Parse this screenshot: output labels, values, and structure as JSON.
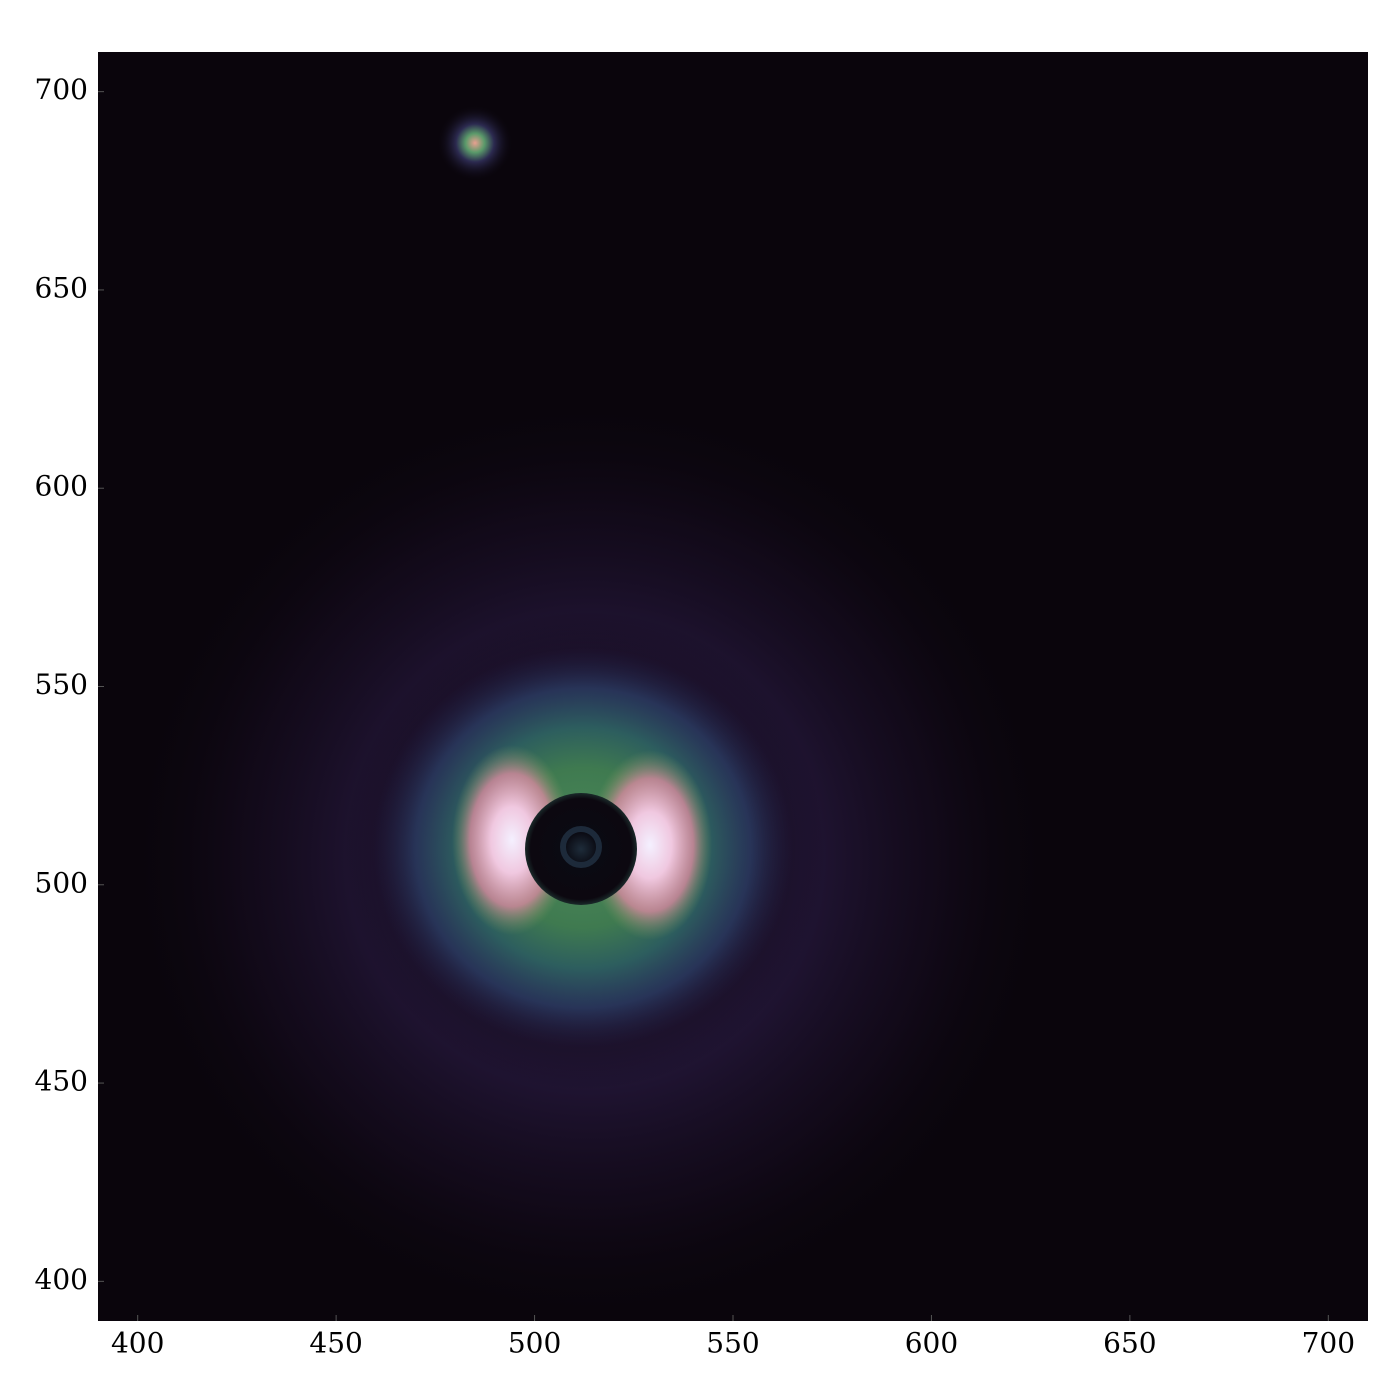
{
  "chart_data": {
    "type": "image",
    "xlim": [
      390,
      710
    ],
    "ylim": [
      390,
      710
    ],
    "xticks": [
      400,
      450,
      500,
      550,
      600,
      650,
      700
    ],
    "yticks": [
      400,
      450,
      500,
      550,
      600,
      650,
      700
    ]
  }
}
